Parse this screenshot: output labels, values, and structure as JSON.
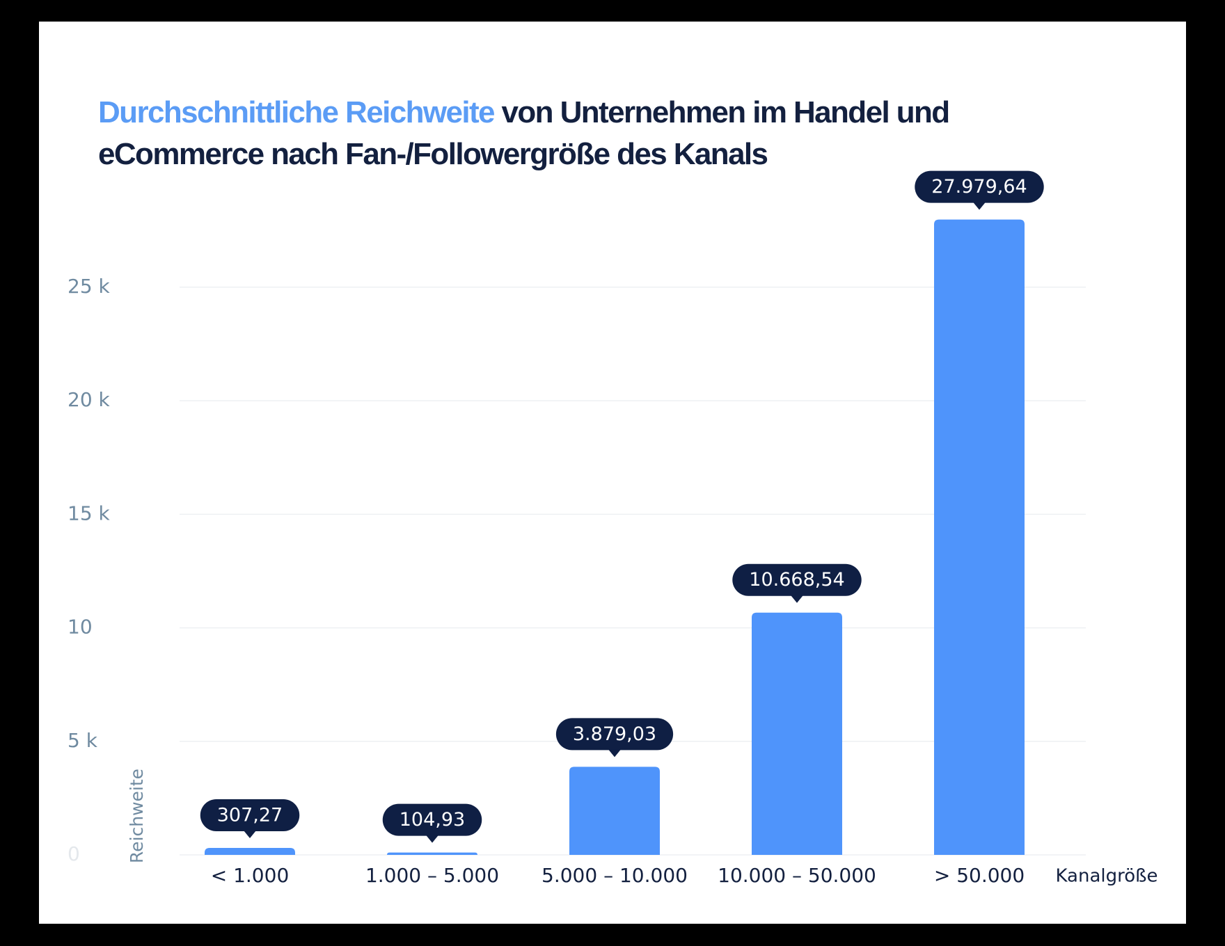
{
  "chart_data": {
    "type": "bar",
    "title": {
      "highlight": "Durchschnittliche Reichweite",
      "text": "von Unternehmen im Handel und eCommerce nach Fan-/Followergröße des Kanals"
    },
    "y_label": "Reichweite",
    "x_label": "Kanalgröße",
    "categories": [
      "< 1.000",
      "1.000 – 5.000",
      "5.000 – 10.000",
      "10.000 – 50.000",
      "> 50.000"
    ],
    "values": [
      307.27,
      104.93,
      3879.03,
      10668.54,
      27979.64
    ],
    "value_labels": [
      "307,27",
      "104,93",
      "3.879,03",
      "10.668,54",
      "27.979,64"
    ],
    "color": "#4f94fb",
    "ylim": [
      0,
      28000
    ],
    "yticks": [
      0,
      {
        "value": 5000,
        "label": "5 k"
      },
      {
        "value": 10000,
        "label": "10"
      },
      {
        "value": 15000,
        "label": "15 k"
      },
      {
        "value": 20000,
        "label": "20 k"
      },
      {
        "value": 25000,
        "label": "25 k"
      }
    ],
    "grid": true
  }
}
